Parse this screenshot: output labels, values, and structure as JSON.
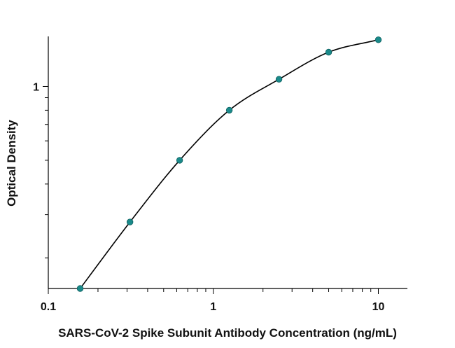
{
  "chart_data": {
    "type": "scatter",
    "title": "",
    "xlabel": "SARS-CoV-2 Spike Subunit Antibody Concentration (ng/mL)",
    "ylabel": "Optical Density",
    "x_scale": "log",
    "y_scale": "log",
    "xlim": [
      0.1,
      15
    ],
    "ylim": [
      0.15,
      1.6
    ],
    "x_tick_labels": [
      "0.1",
      "1",
      "10"
    ],
    "y_tick_labels": [
      "1"
    ],
    "grid": false,
    "marker_color": "#1a8a8a",
    "line_color": "#000000",
    "series": [
      {
        "x": [
          0.156,
          0.3125,
          0.625,
          1.25,
          2.5,
          5,
          10
        ],
        "y": [
          0.15,
          0.28,
          0.5,
          0.8,
          1.07,
          1.38,
          1.55
        ],
        "fit_curve": true
      }
    ]
  }
}
